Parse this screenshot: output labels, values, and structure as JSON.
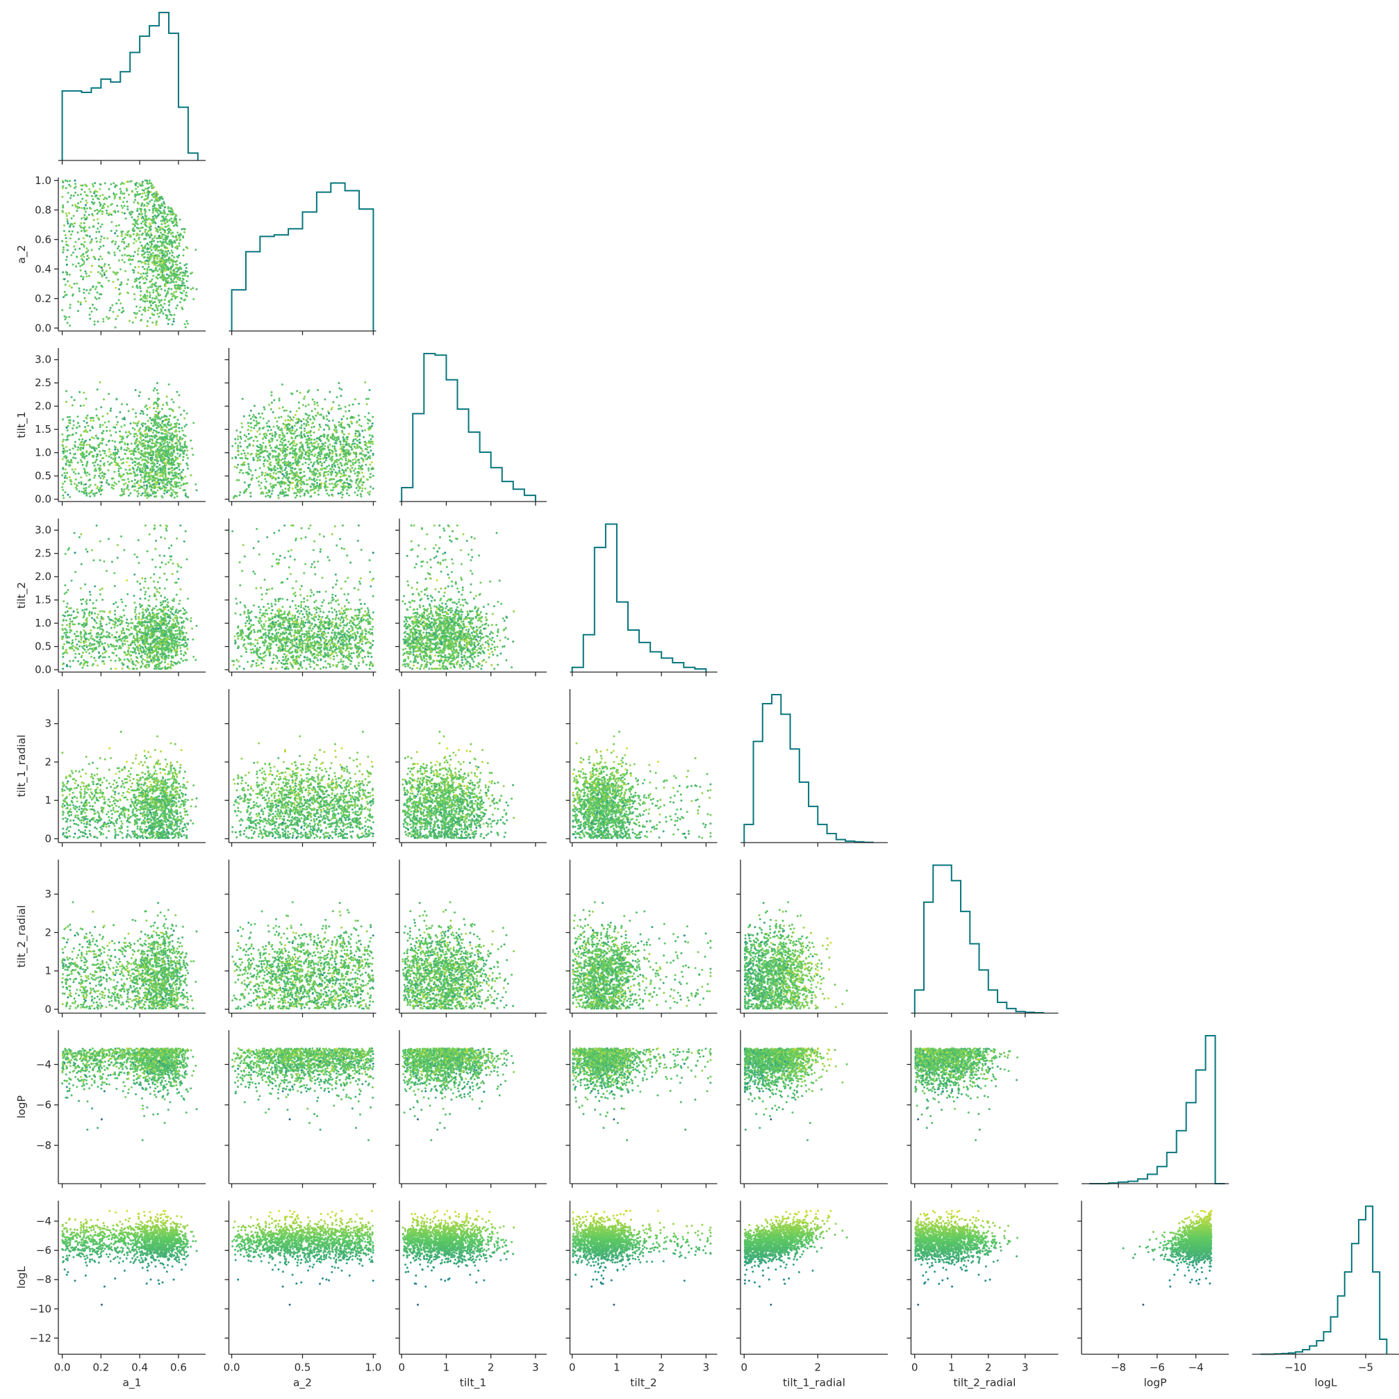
{
  "chart_data": {
    "type": "scatter",
    "title": "",
    "layout": "corner pair plot (lower triangle scatter, step histograms on diagonal)",
    "variables": [
      "a_1",
      "a_2",
      "tilt_1",
      "tilt_2",
      "tilt_1_radial",
      "tilt_2_radial",
      "logP",
      "logL"
    ],
    "axis_labels": [
      "a_1",
      "a_2",
      "tilt_1",
      "tilt_2",
      "tilt_1_radial",
      "tilt_2_radial",
      "logP",
      "logL"
    ],
    "ranges": {
      "a_1": [
        -0.02,
        0.74
      ],
      "a_2": [
        -0.02,
        1.02
      ],
      "tilt_1": [
        -0.05,
        3.25
      ],
      "tilt_2": [
        -0.05,
        3.25
      ],
      "tilt_1_radial": [
        -0.1,
        3.9
      ],
      "tilt_2_radial": [
        -0.1,
        3.9
      ],
      "logP": [
        -9.9,
        -2.3
      ],
      "logL": [
        -13.1,
        -2.6
      ]
    },
    "ticks": {
      "a_1": {
        "values": [
          0.0,
          0.2,
          0.4,
          0.6
        ],
        "labels": [
          "0.0",
          "0.2",
          "0.4",
          "0.6"
        ]
      },
      "a_2": {
        "values": [
          0.0,
          0.5,
          1.0
        ],
        "labels": [
          "0.0",
          "0.5",
          "1.0"
        ]
      },
      "tilt_1": {
        "values": [
          0,
          1,
          2,
          3
        ],
        "labels": [
          "0",
          "1",
          "2",
          "3"
        ]
      },
      "tilt_2": {
        "values": [
          0,
          1,
          2,
          3
        ],
        "labels": [
          "0",
          "1",
          "2",
          "3"
        ]
      },
      "tilt_1_radial": {
        "values": [
          0,
          2
        ],
        "labels": [
          "0",
          "2"
        ]
      },
      "tilt_2_radial": {
        "values": [
          0,
          1,
          2,
          3
        ],
        "labels": [
          "0",
          "1",
          "2",
          "3"
        ]
      },
      "logP": {
        "values": [
          -8,
          -6,
          -4
        ],
        "labels": [
          "−8",
          "−6",
          "−4"
        ]
      },
      "logL": {
        "values": [
          -10,
          -5
        ],
        "labels": [
          "−10",
          "−5"
        ]
      }
    },
    "row_ticks": {
      "a_2": {
        "values": [
          0.0,
          0.2,
          0.4,
          0.6,
          0.8,
          1.0
        ],
        "labels": [
          "0.0",
          "0.2",
          "0.4",
          "0.6",
          "0.8",
          "1.0"
        ]
      },
      "tilt_1": {
        "values": [
          0.0,
          0.5,
          1.0,
          1.5,
          2.0,
          2.5,
          3.0
        ],
        "labels": [
          "0.0",
          "0.5",
          "1.0",
          "1.5",
          "2.0",
          "2.5",
          "3.0"
        ]
      },
      "tilt_2": {
        "values": [
          0.0,
          0.5,
          1.0,
          1.5,
          2.0,
          2.5,
          3.0
        ],
        "labels": [
          "0.0",
          "0.5",
          "1.0",
          "1.5",
          "2.0",
          "2.5",
          "3.0"
        ]
      },
      "tilt_1_radial": {
        "values": [
          0,
          1,
          2,
          3
        ],
        "labels": [
          "0",
          "1",
          "2",
          "3"
        ]
      },
      "tilt_2_radial": {
        "values": [
          0,
          1,
          2,
          3
        ],
        "labels": [
          "0",
          "1",
          "2",
          "3"
        ]
      },
      "logP": {
        "values": [
          -8,
          -6,
          -4
        ],
        "labels": [
          "−8",
          "−6",
          "−4"
        ]
      },
      "logL": {
        "values": [
          -12,
          -10,
          -8,
          -6,
          -4
        ],
        "labels": [
          "−12",
          "−10",
          "−8",
          "−6",
          "−4"
        ]
      }
    },
    "histograms": {
      "a_1": {
        "bin_edges": [
          0.0,
          0.05,
          0.1,
          0.15,
          0.2,
          0.25,
          0.3,
          0.35,
          0.4,
          0.45,
          0.5,
          0.55,
          0.6,
          0.65,
          0.7
        ],
        "counts": [
          0.47,
          0.47,
          0.46,
          0.49,
          0.55,
          0.53,
          0.6,
          0.73,
          0.84,
          0.91,
          1.0,
          0.86,
          0.36,
          0.05
        ]
      },
      "a_2": {
        "bin_edges": [
          0.0,
          0.1,
          0.2,
          0.3,
          0.4,
          0.5,
          0.6,
          0.7,
          0.8,
          0.9,
          1.0
        ],
        "counts": [
          0.27,
          0.52,
          0.62,
          0.63,
          0.67,
          0.78,
          0.91,
          0.97,
          0.92,
          0.8
        ]
      },
      "tilt_1": {
        "bin_edges": [
          0.0,
          0.25,
          0.5,
          0.75,
          1.0,
          1.25,
          1.5,
          1.75,
          2.0,
          2.25,
          2.5,
          2.75,
          3.0
        ],
        "counts": [
          0.09,
          0.57,
          0.96,
          0.95,
          0.79,
          0.6,
          0.45,
          0.32,
          0.22,
          0.13,
          0.08,
          0.04
        ]
      },
      "tilt_2": {
        "bin_edges": [
          0.0,
          0.25,
          0.5,
          0.75,
          1.0,
          1.25,
          1.5,
          1.75,
          2.0,
          2.25,
          2.5,
          2.75,
          3.0
        ],
        "counts": [
          0.03,
          0.24,
          0.8,
          0.95,
          0.45,
          0.27,
          0.19,
          0.13,
          0.09,
          0.06,
          0.03,
          0.02
        ]
      },
      "tilt_1_radial": {
        "bin_edges": [
          0.0,
          0.25,
          0.5,
          0.75,
          1.0,
          1.25,
          1.5,
          1.75,
          2.0,
          2.25,
          2.5,
          2.75,
          3.0,
          3.25,
          3.5
        ],
        "counts": [
          0.12,
          0.67,
          0.92,
          0.98,
          0.85,
          0.62,
          0.4,
          0.24,
          0.12,
          0.06,
          0.02,
          0.01,
          0.005,
          0.002
        ]
      },
      "tilt_2_radial": {
        "bin_edges": [
          0.0,
          0.25,
          0.5,
          0.75,
          1.0,
          1.25,
          1.5,
          1.75,
          2.0,
          2.25,
          2.5,
          2.75,
          3.0,
          3.25,
          3.5
        ],
        "counts": [
          0.15,
          0.72,
          0.96,
          0.96,
          0.86,
          0.66,
          0.45,
          0.28,
          0.15,
          0.07,
          0.03,
          0.01,
          0.005,
          0.002
        ]
      },
      "logP": {
        "bin_edges": [
          -9.5,
          -9.0,
          -8.5,
          -8.0,
          -7.5,
          -7.0,
          -6.5,
          -6.0,
          -5.5,
          -5.0,
          -4.5,
          -4.0,
          -3.5,
          -3.0,
          -2.5
        ],
        "counts": [
          0.0,
          0.0,
          0.004,
          0.01,
          0.015,
          0.03,
          0.06,
          0.11,
          0.2,
          0.34,
          0.52,
          0.73,
          0.95,
          0.0
        ]
      },
      "logL": {
        "bin_edges": [
          -12.5,
          -12.0,
          -11.5,
          -11.0,
          -10.5,
          -10.0,
          -9.5,
          -9.0,
          -8.5,
          -8.0,
          -7.5,
          -7.0,
          -6.5,
          -6.0,
          -5.5,
          -5.0,
          -4.5,
          -4.0,
          -3.5
        ],
        "counts": [
          0.0,
          0.0,
          0.002,
          0.004,
          0.008,
          0.015,
          0.03,
          0.055,
          0.09,
          0.15,
          0.25,
          0.39,
          0.55,
          0.74,
          0.9,
          0.99,
          0.55,
          0.1
        ]
      }
    },
    "marker_size": 2,
    "grid": false,
    "legend": "none",
    "colormap": [
      "#440154",
      "#3b528b",
      "#21918c",
      "#5ec962",
      "#fde725"
    ],
    "color_variable": "logL",
    "histogram_color": "#06767c",
    "background": "#ffffff"
  }
}
